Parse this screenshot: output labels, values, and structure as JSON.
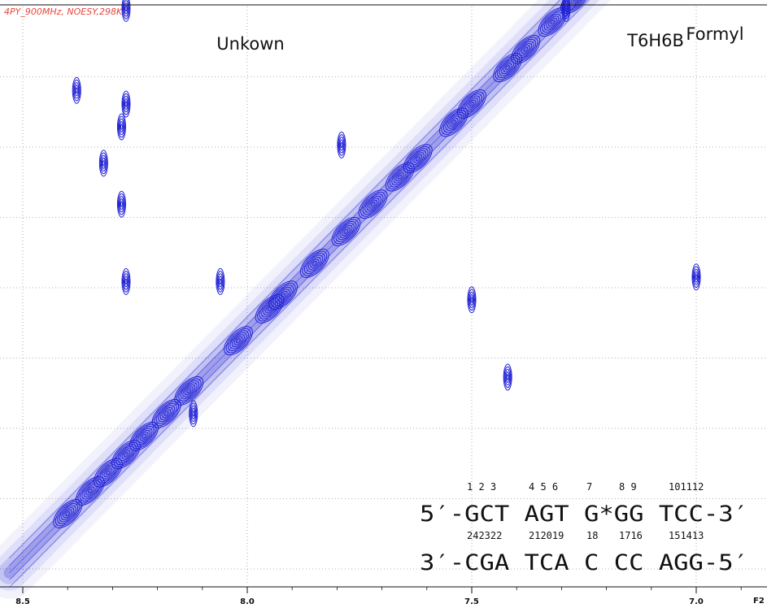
{
  "header": {
    "experiment": "4PY_900MHz, NOESY,298K"
  },
  "chart_data": {
    "type": "contour",
    "x_axis": {
      "name": "F2",
      "unit": "ppm",
      "ticks": [
        {
          "value": 8.5,
          "label": "8.5"
        },
        {
          "value": 8.0,
          "label": "8.0"
        },
        {
          "value": 7.5,
          "label": "7.5"
        },
        {
          "value": 7.0,
          "label": "7.0"
        }
      ],
      "range": [
        8.53,
        6.89
      ],
      "reversed": true
    },
    "y_axis": {
      "range": [
        8.53,
        6.89
      ],
      "reversed": true,
      "tick_labels": "not shown",
      "grid": true
    },
    "diagonal_peaks_ppm": [
      8.4,
      8.35,
      8.31,
      8.27,
      8.23,
      8.18,
      8.13,
      8.02,
      7.95,
      7.92,
      7.85,
      7.78,
      7.72,
      7.66,
      7.62,
      7.54,
      7.5,
      7.42,
      7.38,
      7.32,
      7.27,
      7.21,
      7.14,
      7.05,
      6.97
    ],
    "cross_peaks_ppm": [
      {
        "x": 8.0,
        "y": 6.97
      },
      {
        "x": 8.0,
        "y": 7.11
      },
      {
        "x": 7.3,
        "y": 7.0
      },
      {
        "x": 7.0,
        "y": 7.05
      },
      {
        "x": 7.0,
        "y": 7.88
      },
      {
        "x": 8.27,
        "y": 7.29
      },
      {
        "x": 8.27,
        "y": 7.5
      },
      {
        "x": 8.38,
        "y": 7.47
      },
      {
        "x": 8.28,
        "y": 7.55
      },
      {
        "x": 8.32,
        "y": 7.63
      },
      {
        "x": 8.28,
        "y": 7.72
      },
      {
        "x": 8.06,
        "y": 7.89
      },
      {
        "x": 8.27,
        "y": 7.89
      },
      {
        "x": 7.42,
        "y": 8.1
      },
      {
        "x": 7.29,
        "y": 7.29
      },
      {
        "x": 7.5,
        "y": 7.93
      },
      {
        "x": 8.12,
        "y": 8.18
      },
      {
        "x": 7.79,
        "y": 7.59
      }
    ],
    "annotations": [
      {
        "label": "Unkown",
        "x": 8.0
      },
      {
        "label": "T6H6B",
        "x": 7.07
      },
      {
        "label": "Formyl",
        "x": 7.0
      }
    ]
  },
  "sequence": {
    "top_numbers": [
      "1 2 3",
      "4 5 6",
      "7",
      "8 9",
      "101112"
    ],
    "strand_top": "5′-GCT AGT G*GG TCC-3′",
    "bottom_numbers": [
      "242322",
      "212019",
      "18",
      "1716",
      "151413"
    ],
    "strand_bottom": "3′-CGA TCA C CC AGG-5′"
  }
}
